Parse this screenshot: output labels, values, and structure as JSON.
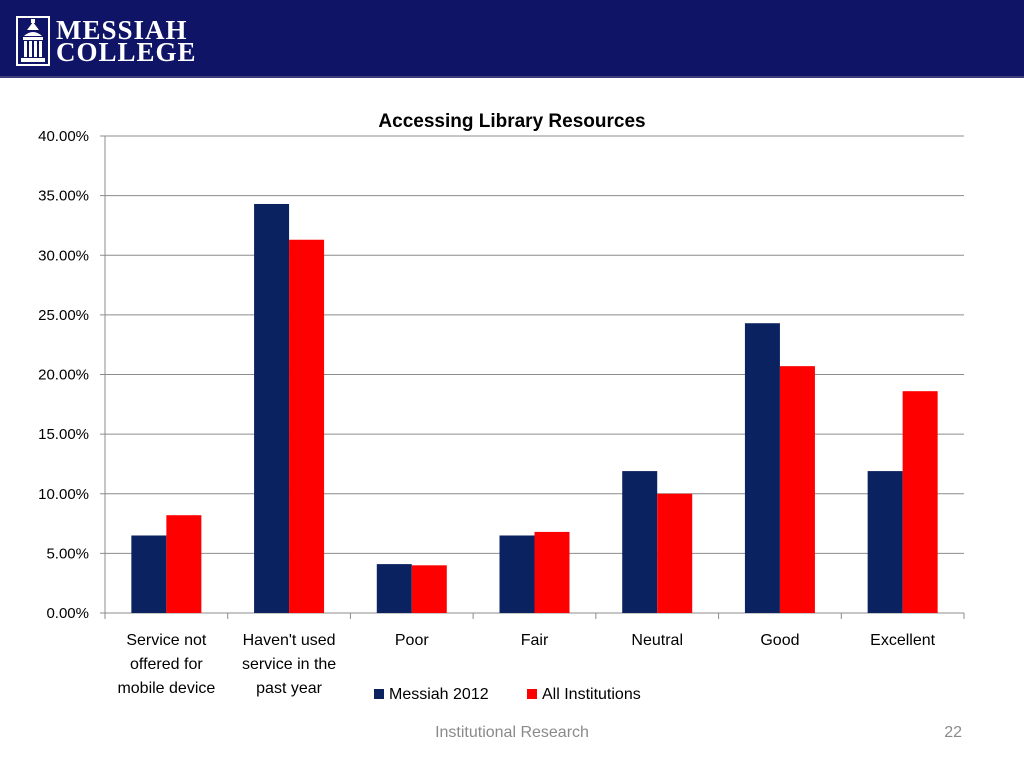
{
  "header": {
    "logo_line1": "MESSIAH",
    "logo_line2": "COLLEGE"
  },
  "footer": {
    "center_text": "Institutional Research",
    "page_number": "22"
  },
  "colors": {
    "banner": "#0f1466",
    "series1": "#0b2260",
    "series2": "#ff0000"
  },
  "chart_data": {
    "type": "bar",
    "title": "Accessing Library Resources",
    "xlabel": "",
    "ylabel": "",
    "ylim": [
      0,
      0.4
    ],
    "yticks": [
      "0.00%",
      "5.00%",
      "10.00%",
      "15.00%",
      "20.00%",
      "25.00%",
      "30.00%",
      "35.00%",
      "40.00%"
    ],
    "grid": true,
    "legend_position": "bottom",
    "categories": [
      [
        "Service not",
        "offered for",
        "mobile device"
      ],
      [
        "Haven't used",
        "service in the",
        "past year"
      ],
      [
        "Poor"
      ],
      [
        "Fair"
      ],
      [
        "Neutral"
      ],
      [
        "Good"
      ],
      [
        "Excellent"
      ]
    ],
    "series": [
      {
        "name": "Messiah 2012",
        "values": [
          0.065,
          0.343,
          0.041,
          0.065,
          0.119,
          0.243,
          0.119
        ]
      },
      {
        "name": "All Institutions",
        "values": [
          0.082,
          0.313,
          0.04,
          0.068,
          0.1,
          0.207,
          0.186
        ]
      }
    ]
  }
}
